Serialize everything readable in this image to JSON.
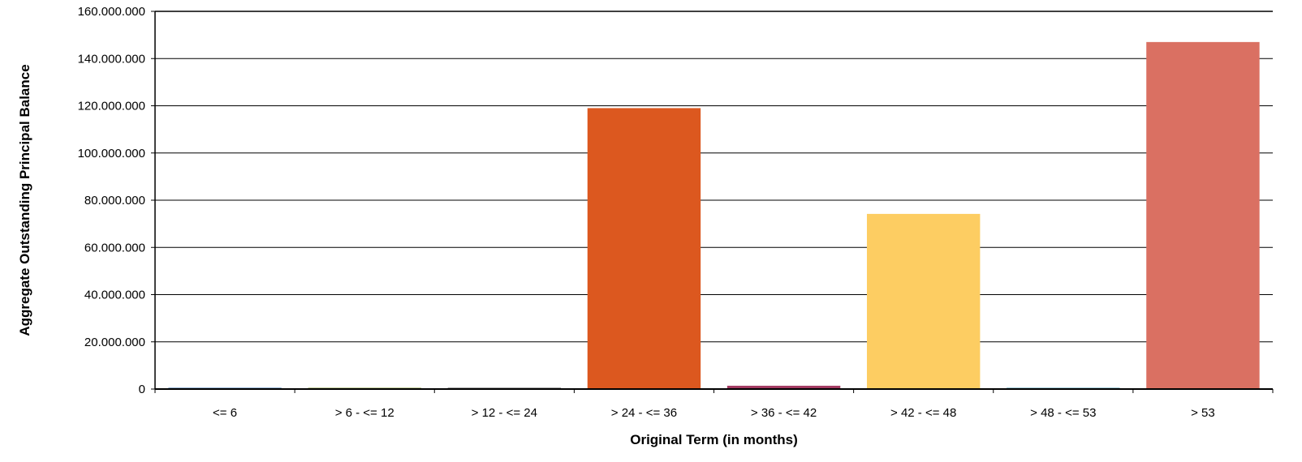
{
  "chart_data": {
    "type": "bar",
    "xlabel": "Original Term (in months)",
    "ylabel": "Aggregate Outstanding Principal Balance",
    "categories": [
      "<= 6",
      "> 6 - <= 12",
      "> 12 - <= 24",
      "> 24 - <= 36",
      "> 36 - <= 42",
      "> 42 - <= 48",
      "> 48 - <= 53",
      "> 53"
    ],
    "values": [
      50000,
      100000,
      150000,
      119000000,
      1400000,
      74200000,
      300000,
      147000000
    ],
    "colors": [
      "#1f5fa0",
      "#7a8c2b",
      "#444444",
      "#dc581f",
      "#a33a62",
      "#fdcd62",
      "#3a8fa8",
      "#da7062"
    ],
    "ylim": [
      0,
      160000000
    ],
    "yticks": [
      0,
      20000000,
      40000000,
      60000000,
      80000000,
      100000000,
      120000000,
      140000000,
      160000000
    ],
    "ytick_labels": [
      "0",
      "20.000.000",
      "40.000.000",
      "60.000.000",
      "80.000.000",
      "100.000.000",
      "120.000.000",
      "140.000.000",
      "160.000.000"
    ],
    "grid": true,
    "legend": "none"
  }
}
